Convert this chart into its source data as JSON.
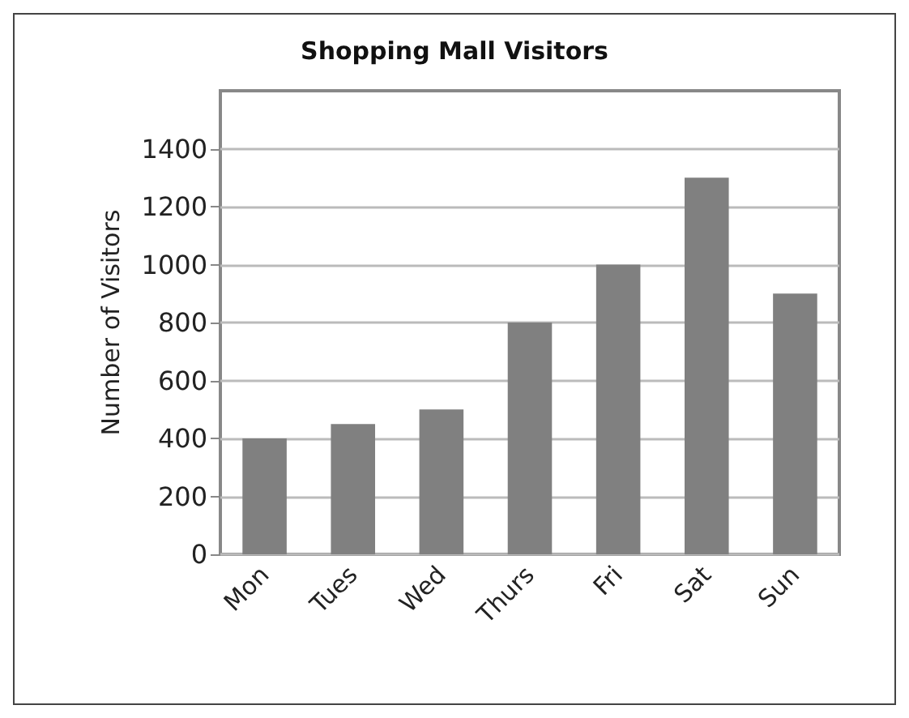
{
  "chart_data": {
    "type": "bar",
    "title": "Shopping Mall Visitors",
    "ylabel": "Number of Visitors",
    "categories": [
      "Mon",
      "Tues",
      "Wed",
      "Thurs",
      "Fri",
      "Sat",
      "Sun"
    ],
    "values": [
      400,
      450,
      500,
      800,
      1000,
      1300,
      900
    ],
    "color": "#808080",
    "ylim": [
      0,
      1600
    ],
    "yticks": [
      0,
      200,
      400,
      600,
      800,
      1000,
      1200,
      1400
    ],
    "grid": "y"
  }
}
